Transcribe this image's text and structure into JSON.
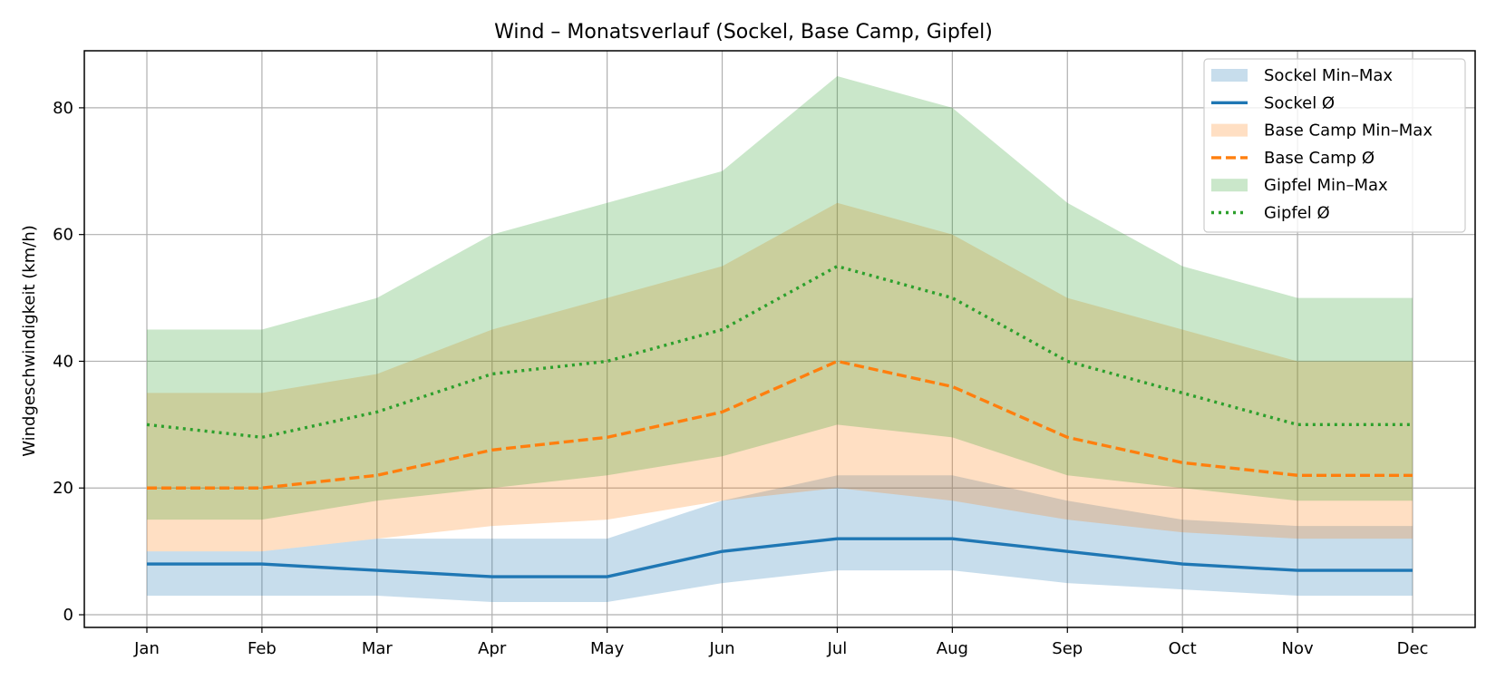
{
  "chart_data": {
    "type": "area",
    "title": "Wind – Monatsverlauf (Sockel, Base Camp, Gipfel)",
    "xlabel": "",
    "ylabel": "Windgeschwindigkeit (km/h)",
    "categories": [
      "Jan",
      "Feb",
      "Mar",
      "Apr",
      "May",
      "Jun",
      "Jul",
      "Aug",
      "Sep",
      "Oct",
      "Nov",
      "Dec"
    ],
    "ylim": [
      -2,
      89
    ],
    "yticks": [
      0,
      20,
      40,
      60,
      80
    ],
    "grid": true,
    "legend_position": "top-right",
    "series": [
      {
        "name": "Sockel",
        "band_label": "Sockel Min–Max",
        "line_label": "Sockel Ø",
        "color": "#1f77b4",
        "band_alpha": 0.25,
        "line_style": "solid",
        "min": [
          3,
          3,
          3,
          2,
          2,
          5,
          7,
          7,
          5,
          4,
          3,
          3
        ],
        "max": [
          10,
          10,
          12,
          12,
          12,
          18,
          22,
          22,
          18,
          15,
          14,
          14
        ],
        "mean": [
          8,
          8,
          7,
          6,
          6,
          10,
          12,
          12,
          10,
          8,
          7,
          7
        ]
      },
      {
        "name": "Base Camp",
        "band_label": "Base Camp Min–Max",
        "line_label": "Base Camp Ø",
        "color": "#ff7f0e",
        "band_alpha": 0.25,
        "line_style": "dashed",
        "min": [
          10,
          10,
          12,
          14,
          15,
          18,
          20,
          18,
          15,
          13,
          12,
          12
        ],
        "max": [
          35,
          35,
          38,
          45,
          50,
          55,
          65,
          60,
          50,
          45,
          40,
          40
        ],
        "mean": [
          20,
          20,
          22,
          26,
          28,
          32,
          40,
          36,
          28,
          24,
          22,
          22
        ]
      },
      {
        "name": "Gipfel",
        "band_label": "Gipfel Min–Max",
        "line_label": "Gipfel Ø",
        "color": "#2ca02c",
        "band_alpha": 0.25,
        "line_style": "dotted",
        "min": [
          15,
          15,
          18,
          20,
          22,
          25,
          30,
          28,
          22,
          20,
          18,
          18
        ],
        "max": [
          45,
          45,
          50,
          60,
          65,
          70,
          85,
          80,
          65,
          55,
          50,
          50
        ],
        "mean": [
          30,
          28,
          32,
          38,
          40,
          45,
          55,
          50,
          40,
          35,
          30,
          30
        ]
      }
    ]
  }
}
